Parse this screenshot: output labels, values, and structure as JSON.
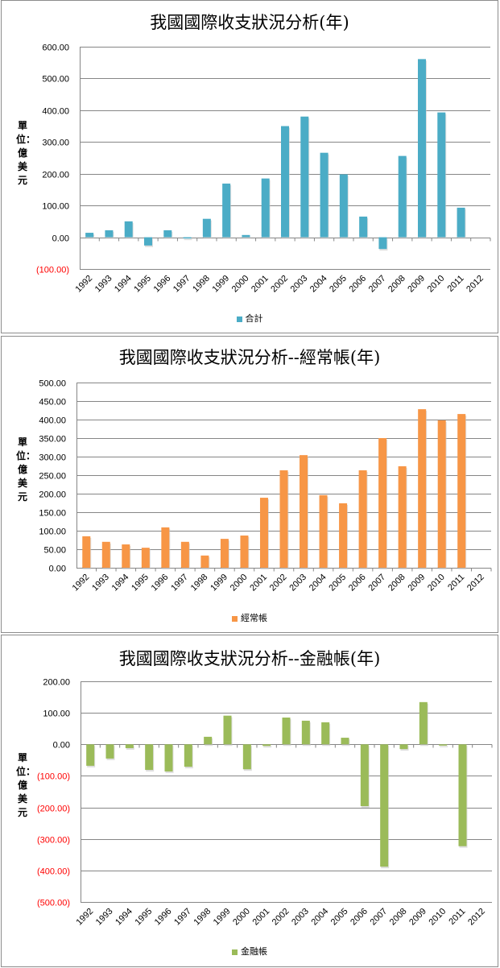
{
  "y_axis_label": "單位：億美元",
  "chart_data": [
    {
      "type": "bar",
      "title": "我國國際收支狀況分析(年)",
      "ylabel": "單位：億美元",
      "categories": [
        "1992",
        "1993",
        "1994",
        "1995",
        "1996",
        "1997",
        "1998",
        "1999",
        "2000",
        "2001",
        "2002",
        "2003",
        "2004",
        "2005",
        "2006",
        "2007",
        "2008",
        "2009",
        "2010",
        "2011",
        "2012"
      ],
      "series": [
        {
          "name": "合計",
          "color": "#4bacc6",
          "values": [
            14,
            22,
            50,
            -26,
            22,
            -4,
            58,
            169,
            7,
            185,
            350,
            380,
            266,
            198,
            65,
            -37,
            256,
            561,
            393,
            93,
            null
          ]
        }
      ],
      "ylim": [
        -100,
        600
      ],
      "ytick_step": 100,
      "grid": true,
      "legend": "bottom",
      "negative_tick_color": "#ff0000"
    },
    {
      "type": "bar",
      "title": "我國國際收支狀況分析--經常帳(年)",
      "ylabel": "單位：億美元",
      "categories": [
        "1992",
        "1993",
        "1994",
        "1995",
        "1996",
        "1997",
        "1998",
        "1999",
        "2000",
        "2001",
        "2002",
        "2003",
        "2004",
        "2005",
        "2006",
        "2007",
        "2008",
        "2009",
        "2010",
        "2011",
        "2012"
      ],
      "series": [
        {
          "name": "經常帳",
          "color": "#f79646",
          "values": [
            85,
            70,
            63,
            54,
            109,
            70,
            33,
            78,
            87,
            189,
            263,
            304,
            196,
            174,
            263,
            350,
            274,
            428,
            398,
            415,
            null
          ]
        }
      ],
      "ylim": [
        0,
        500
      ],
      "ytick_step": 50,
      "grid": true,
      "legend": "bottom",
      "negative_tick_color": "#ff0000"
    },
    {
      "type": "bar",
      "title": "我國國際收支狀況分析--金融帳(年)",
      "ylabel": "單位：億美元",
      "categories": [
        "1992",
        "1993",
        "1994",
        "1995",
        "1996",
        "1997",
        "1998",
        "1999",
        "2000",
        "2001",
        "2002",
        "2003",
        "2004",
        "2005",
        "2006",
        "2007",
        "2008",
        "2009",
        "2010",
        "2011",
        "2012"
      ],
      "series": [
        {
          "name": "金融帳",
          "color": "#9bbb59",
          "values": [
            -68,
            -45,
            -12,
            -81,
            -86,
            -71,
            24,
            91,
            -79,
            -5,
            85,
            75,
            70,
            21,
            -196,
            -388,
            -15,
            134,
            -4,
            -323,
            null
          ]
        }
      ],
      "ylim": [
        -500,
        200
      ],
      "ytick_step": 100,
      "grid": true,
      "legend": "bottom",
      "negative_tick_color": "#ff0000"
    }
  ]
}
